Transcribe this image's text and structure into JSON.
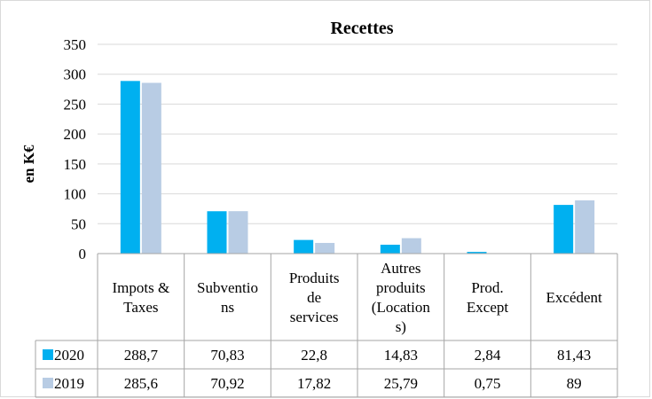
{
  "chart_data": {
    "type": "bar",
    "title": "Recettes",
    "ylabel": "en K€",
    "xlabel": "",
    "ylim": [
      0,
      350
    ],
    "yticks": [
      0,
      50,
      100,
      150,
      200,
      250,
      300,
      350
    ],
    "grid": true,
    "legend": "table-left",
    "categories": [
      [
        "Impots &",
        "Taxes"
      ],
      [
        "Subventio",
        "ns"
      ],
      [
        "Produits",
        "de",
        "services"
      ],
      [
        "Autres",
        "produits",
        "(Location",
        "s)"
      ],
      [
        "Prod.",
        "Except"
      ],
      [
        "Excédent"
      ]
    ],
    "series": [
      {
        "name": "2020",
        "color": "#00b0f0",
        "values": [
          288.7,
          70.83,
          22.8,
          14.83,
          2.84,
          81.43
        ],
        "labels": [
          "288,7",
          "70,83",
          "22,8",
          "14,83",
          "2,84",
          "81,43"
        ]
      },
      {
        "name": "2019",
        "color": "#b8cce4",
        "values": [
          285.6,
          70.92,
          17.82,
          25.79,
          0.75,
          89
        ],
        "labels": [
          "285,6",
          "70,92",
          "17,82",
          "25,79",
          "0,75",
          "89"
        ]
      }
    ]
  }
}
